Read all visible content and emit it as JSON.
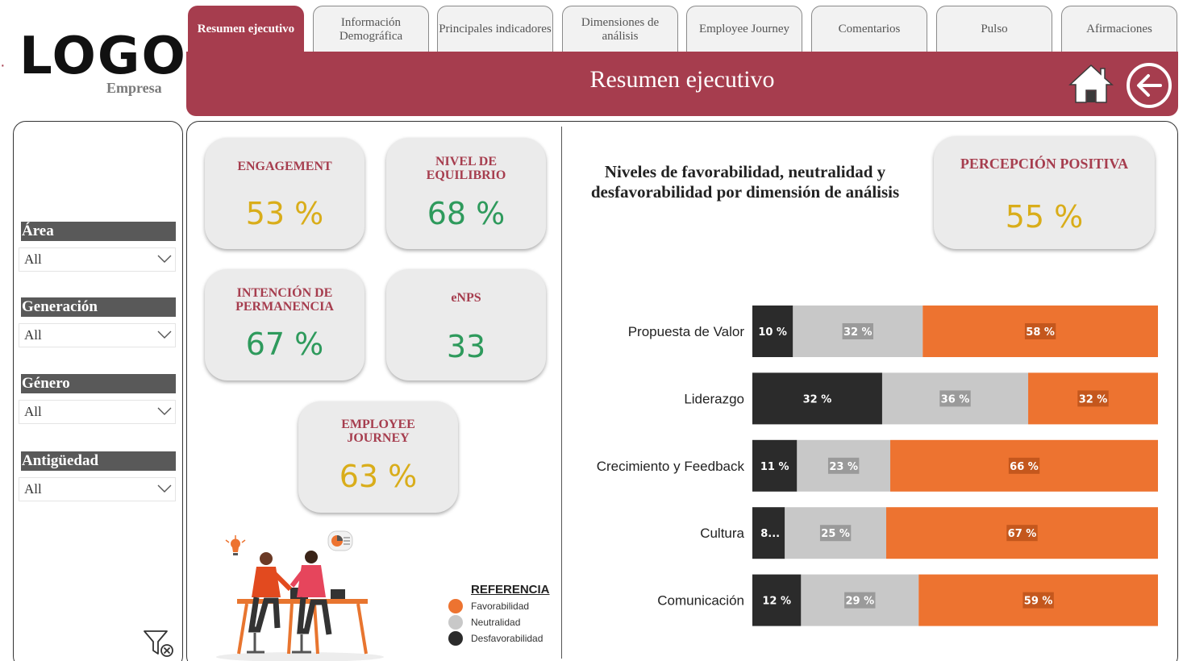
{
  "brand": {
    "logo": "LOGO",
    "company": "Empresa"
  },
  "tabs": [
    {
      "label": "Resumen ejecutivo",
      "active": true
    },
    {
      "label": "Información Demográfica",
      "active": false
    },
    {
      "label": "Principales indicadores",
      "active": false
    },
    {
      "label": "Dimensiones de análisis",
      "active": false
    },
    {
      "label": "Employee Journey",
      "active": false
    },
    {
      "label": "Comentarios",
      "active": false
    },
    {
      "label": "Pulso",
      "active": false
    },
    {
      "label": "Afirmaciones",
      "active": false
    }
  ],
  "header": {
    "title": "Resumen ejecutivo",
    "home_icon": "home-icon",
    "back_icon": "back-arrow-icon"
  },
  "filters": [
    {
      "label": "Área",
      "value": "All"
    },
    {
      "label": "Generación",
      "value": "All"
    },
    {
      "label": "Género",
      "value": "All"
    },
    {
      "label": "Antigüedad",
      "value": "All"
    }
  ],
  "kpis": {
    "engagement": {
      "title": "ENGAGEMENT",
      "value": "53 %"
    },
    "equilibrio": {
      "title": "NIVEL DE EQUILIBRIO",
      "value": "68 %"
    },
    "permanencia": {
      "title": "INTENCIÓN DE PERMANENCIA",
      "value": "67 %"
    },
    "enps": {
      "title": "eNPS",
      "value": "33"
    },
    "journey": {
      "title": "EMPLOYEE JOURNEY",
      "value": "63 %"
    },
    "percepcion": {
      "title": "PERCEPCIÓN POSITIVA",
      "value": "55 %"
    }
  },
  "colors": {
    "brand": "#a63d4e",
    "favorable": "#ed7330",
    "neutral": "#c8c8c8",
    "unfavorable": "#2b2b2b",
    "kpi_yellow": "#d9ad1a",
    "kpi_green": "#2e9a5c"
  },
  "reference": {
    "title": "REFERENCIA",
    "items": [
      "Favorabilidad",
      "Neutralidad",
      "Desfavorabilidad"
    ]
  },
  "chart_data": {
    "type": "bar",
    "orientation": "horizontal",
    "stacked": "100%",
    "title": "Niveles de favorabilidad, neutralidad y desfavorabilidad por dimensión de análisis",
    "categories": [
      "Propuesta de Valor",
      "Liderazgo",
      "Crecimiento y Feedback",
      "Cultura",
      "Comunicación"
    ],
    "series": [
      {
        "name": "Desfavorabilidad",
        "color": "#2b2b2b",
        "values": [
          10,
          32,
          11,
          8,
          12
        ],
        "labels": [
          "10 %",
          "32 %",
          "11 %",
          "8...",
          "12 %"
        ]
      },
      {
        "name": "Neutralidad",
        "color": "#c8c8c8",
        "values": [
          32,
          36,
          23,
          25,
          29
        ],
        "labels": [
          "32 %",
          "36 %",
          "23 %",
          "25 %",
          "29 %"
        ]
      },
      {
        "name": "Favorabilidad",
        "color": "#ed7330",
        "values": [
          58,
          32,
          66,
          67,
          59
        ],
        "labels": [
          "58 %",
          "32 %",
          "66 %",
          "67 %",
          "59 %"
        ]
      }
    ],
    "xlim": [
      0,
      100
    ],
    "grid": false,
    "legend": "bottom-left"
  }
}
